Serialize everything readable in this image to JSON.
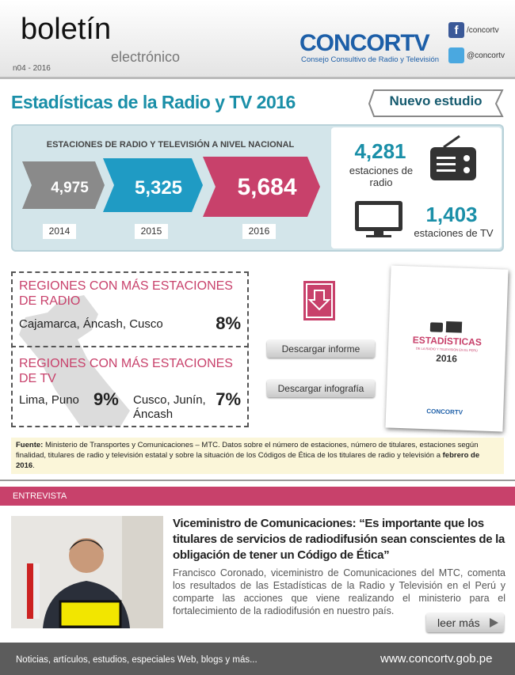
{
  "header": {
    "title": "boletín",
    "subtitle": "electrónico",
    "issue": "n04 - 2016",
    "brand": "CONCORTV",
    "brand_tagline": "Consejo Consultivo de Radio y Televisión",
    "facebook": "/concortv",
    "twitter": "@concortv"
  },
  "section": {
    "title": "Estadísticas de la Radio y TV 2016",
    "badge": "Nuevo estudio"
  },
  "stats": {
    "heading": "ESTACIONES DE RADIO Y TELEVISIÓN A NIVEL NACIONAL",
    "years": [
      {
        "value": "4,975",
        "year": "2014"
      },
      {
        "value": "5,325",
        "year": "2015"
      },
      {
        "value": "5,684",
        "year": "2016"
      }
    ],
    "radio": {
      "value": "4,281",
      "label": "estaciones de radio"
    },
    "tv": {
      "value": "1,403",
      "label": "estaciones de TV"
    }
  },
  "regions": {
    "radio": {
      "title": "REGIONES CON MÁS ESTACIONES DE RADIO",
      "items": "Cajamarca, Áncash, Cusco",
      "percent": "8%"
    },
    "tv": {
      "title": "REGIONES CON MÁS ESTACIONES DE TV",
      "items_a": "Lima, Puno",
      "percent_a": "9%",
      "items_b": "Cusco, Junín, Áncash",
      "percent_b": "7%"
    }
  },
  "downloads": {
    "report": "Descargar informe",
    "infographic": "Descargar infografía"
  },
  "cover": {
    "title": "ESTADÍSTICAS",
    "subtitle": "DE LA RADIO Y TELEVISIÓN EN EL PERÚ",
    "year": "2016",
    "brand": "CONCORTV"
  },
  "source": {
    "label": "Fuente:",
    "text": "Ministerio de Transportes y Comunicaciones – MTC. Datos sobre el número de estaciones, número de titulares, estaciones según finalidad, titulares de radio y televisión estatal y sobre la situación de los Códigos de Ética de los titulares de radio y televisión a ",
    "date": "febrero de 2016",
    "end": "."
  },
  "interview": {
    "section": "ENTREVISTA",
    "headline": "Viceministro de Comunicaciones: “Es importante que los titulares de servicios de radiodifusión sean conscientes de la obligación de tener un Código de Ética”",
    "body": "Francisco Coronado, viceministro de Comunicaciones del MTC, comenta los resultados de las Estadísticas de la Radio y Televisión en el Perú y comparte las acciones que viene realizando el ministerio para el fortalecimiento de la radiodifusión en nuestro país.",
    "more": "leer más"
  },
  "footer": {
    "tagline": "Noticias, artículos, estudios, especiales Web, blogs y más...",
    "url": "www.concortv.gob.pe"
  }
}
